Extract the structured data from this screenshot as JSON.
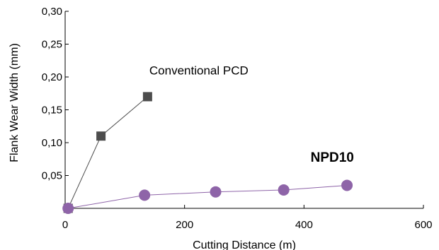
{
  "chart_data": {
    "type": "scatter",
    "title": "",
    "xlabel": "Cutting Distance (m)",
    "ylabel": "Flank Wear Width (mm)",
    "xlim": [
      0,
      600
    ],
    "ylim": [
      0,
      0.3
    ],
    "x_ticks": [
      {
        "value": 0,
        "label": "0"
      },
      {
        "value": 200,
        "label": "200"
      },
      {
        "value": 400,
        "label": "400"
      },
      {
        "value": 600,
        "label": "600"
      }
    ],
    "y_ticks": [
      {
        "value": 0.05,
        "label": "0,05"
      },
      {
        "value": 0.1,
        "label": "0,10"
      },
      {
        "value": 0.15,
        "label": "0,15"
      },
      {
        "value": 0.2,
        "label": "0,20"
      },
      {
        "value": 0.25,
        "label": "0,25"
      },
      {
        "value": 0.3,
        "label": "0,30"
      }
    ],
    "grid": false,
    "legend": "none",
    "series": [
      {
        "name": "Conventional PCD",
        "marker": "square",
        "color": "#4d4d4d",
        "line_color": "#4d4d4d",
        "x": [
          5,
          60,
          138
        ],
        "y": [
          0.0,
          0.11,
          0.17
        ]
      },
      {
        "name": "NPD10",
        "marker": "circle",
        "color": "#8e64a8",
        "line_color": "#8e64a8",
        "x": [
          5,
          133,
          252,
          366,
          472
        ],
        "y": [
          0.0,
          0.02,
          0.025,
          0.028,
          0.035
        ]
      }
    ],
    "annotations": [
      {
        "text": "Conventional PCD",
        "x": 141,
        "y": 0.204,
        "weight": "normal"
      },
      {
        "text": "NPD10",
        "x": 411,
        "y": 0.071,
        "weight": "bold"
      }
    ]
  }
}
